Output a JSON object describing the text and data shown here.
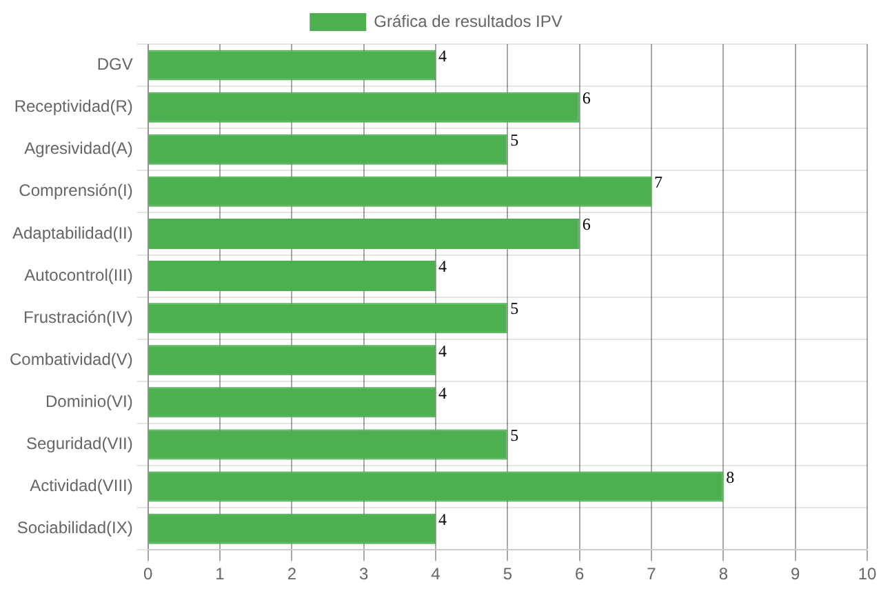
{
  "chart_data": {
    "type": "bar",
    "orientation": "horizontal",
    "categories": [
      "DGV",
      "Receptividad(R)",
      "Agresividad(A)",
      "Comprensión(I)",
      "Adaptabilidad(II)",
      "Autocontrol(III)",
      "Frustración(IV)",
      "Combatividad(V)",
      "Dominio(VI)",
      "Seguridad(VII)",
      "Actividad(VIII)",
      "Sociabilidad(IX)"
    ],
    "series": [
      {
        "name": "Gráfica de resultados IPV",
        "color": "#4caf50",
        "values": [
          4,
          6,
          5,
          7,
          6,
          4,
          5,
          4,
          4,
          5,
          8,
          4
        ]
      }
    ],
    "xlim": [
      0,
      10
    ],
    "xticks": [
      0,
      1,
      2,
      3,
      4,
      5,
      6,
      7,
      8,
      9,
      10
    ],
    "grid": true,
    "legend": "top",
    "data_labels": true
  }
}
